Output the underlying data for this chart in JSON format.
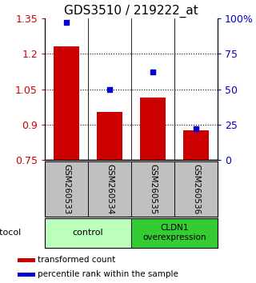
{
  "title": "GDS3510 / 219222_at",
  "samples": [
    "GSM260533",
    "GSM260534",
    "GSM260535",
    "GSM260536"
  ],
  "bar_values": [
    1.23,
    0.955,
    1.015,
    0.875
  ],
  "bar_base": 0.75,
  "percentile_values": [
    97,
    50,
    62,
    22
  ],
  "percentile_scale": [
    0,
    25,
    50,
    75,
    100
  ],
  "left_yticks": [
    0.75,
    0.9,
    1.05,
    1.2,
    1.35
  ],
  "left_ylim": [
    0.75,
    1.35
  ],
  "right_ylim": [
    0,
    100
  ],
  "bar_color": "#cc0000",
  "dot_color": "#0000cc",
  "sample_bg": "#c0c0c0",
  "group1_label": "control",
  "group2_label": "CLDN1\noverexpression",
  "group1_bg": "#bbffbb",
  "group2_bg": "#33cc33",
  "protocol_label": "protocol",
  "legend_bar_label": "transformed count",
  "legend_dot_label": "percentile rank within the sample"
}
